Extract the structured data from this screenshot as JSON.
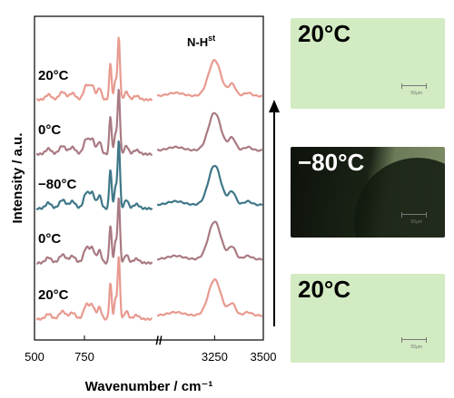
{
  "chart_data": {
    "type": "line",
    "xlabel": "Wavenumber / cm⁻¹",
    "ylabel": "Intensity / a.u.",
    "annotation_main": "N-H",
    "annotation_sup": "st",
    "x_segments": [
      {
        "range": [
          500,
          1100
        ],
        "ticks": [
          {
            "value": 500,
            "label": "500"
          },
          {
            "value": 750,
            "label": "750"
          }
        ]
      },
      {
        "range": [
          2950,
          3500
        ],
        "ticks": [
          {
            "value": 3250,
            "label": "3250"
          },
          {
            "value": 3500,
            "label": "3500"
          }
        ]
      }
    ],
    "axis_break": "//",
    "series": [
      {
        "label": "20°C",
        "color": "#e89a8f",
        "scale": 1.0
      },
      {
        "label": "0°C",
        "color": "#a97a82",
        "scale": 1.05
      },
      {
        "label": "−80°C",
        "color": "#3f7788",
        "scale": 1.1
      },
      {
        "label": "0°C",
        "color": "#a97a82",
        "scale": 1.05
      },
      {
        "label": "20°C",
        "color": "#e89a8f",
        "scale": 1.0
      }
    ]
  },
  "micrographs": [
    {
      "label": "20°C",
      "scale_text": "50µm"
    },
    {
      "label": "−80°C",
      "scale_text": "50µm"
    },
    {
      "label": "20°C",
      "scale_text": "50µm"
    }
  ],
  "colors": {
    "micro_light": "#d3ebc2",
    "micro_dark": "#0d120b",
    "micro_grain": "#6b7a58",
    "axis": "#000000"
  }
}
